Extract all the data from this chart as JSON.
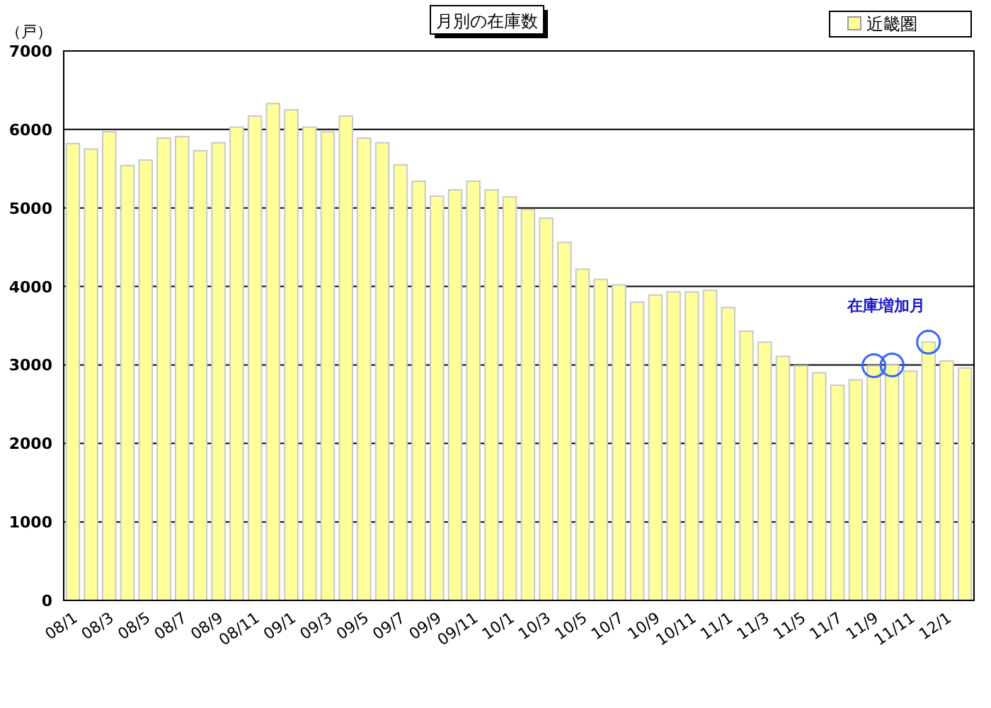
{
  "chart_data": {
    "type": "bar",
    "title": "月別の在庫数",
    "ylabel": "（戸）",
    "categories": [
      "08/1",
      null,
      "08/3",
      null,
      "08/5",
      null,
      "08/7",
      null,
      "08/9",
      null,
      "08/11",
      null,
      "09/1",
      null,
      "09/3",
      null,
      "09/5",
      null,
      "09/7",
      null,
      "09/9",
      null,
      "09/11",
      null,
      "10/1",
      null,
      "10/3",
      null,
      "10/5",
      null,
      "10/7",
      null,
      "10/9",
      null,
      "10/11",
      null,
      "11/1",
      null,
      "11/3",
      null,
      "11/5",
      null,
      "11/7",
      null,
      "11/9",
      null,
      "11/11",
      null,
      "12/1",
      null
    ],
    "series": [
      {
        "name": "近畿圏",
        "color": "#ffff99",
        "values": [
          5820,
          5750,
          5970,
          5540,
          5610,
          5890,
          5910,
          5730,
          5830,
          6030,
          6170,
          6330,
          6250,
          6030,
          5970,
          6170,
          5890,
          5830,
          5550,
          5340,
          5150,
          5230,
          5340,
          5230,
          5140,
          4980,
          4870,
          4560,
          4220,
          4090,
          4020,
          3800,
          3890,
          3930,
          3930,
          3950,
          3730,
          3430,
          3290,
          3110,
          2990,
          2900,
          2740,
          2810,
          2990,
          3000,
          2920,
          3290,
          3050,
          2960
        ]
      },
      {
        "type": "scatter",
        "marker": "circle",
        "color": "#3366ff",
        "values": [
          null,
          null,
          null,
          null,
          null,
          null,
          null,
          null,
          null,
          null,
          null,
          null,
          null,
          null,
          null,
          null,
          null,
          null,
          null,
          null,
          null,
          null,
          null,
          null,
          null,
          null,
          null,
          null,
          null,
          null,
          null,
          null,
          null,
          null,
          null,
          null,
          null,
          null,
          null,
          null,
          null,
          null,
          null,
          null,
          2990,
          3000,
          null,
          3290,
          null,
          null
        ]
      }
    ],
    "annotations": [
      "在庫増加月"
    ],
    "ylim": [
      0,
      7000
    ],
    "yticks": [
      0,
      1000,
      2000,
      3000,
      4000,
      5000,
      6000,
      7000
    ],
    "grid": "y",
    "legend": "top right"
  }
}
